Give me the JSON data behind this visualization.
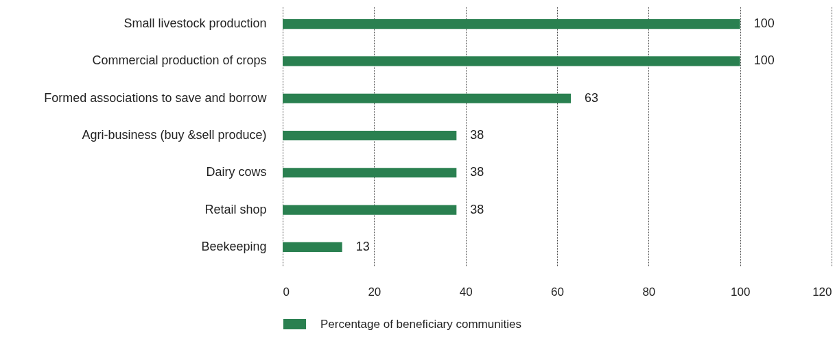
{
  "chart_data": {
    "type": "bar",
    "orientation": "horizontal",
    "categories": [
      "Small livestock production",
      "Commercial production of crops",
      "Formed associations to save and borrow",
      "Agri-business (buy &sell produce)",
      "Dairy cows",
      "Retail shop",
      "Beekeeping"
    ],
    "series": [
      {
        "name": "Percentage of beneficiary communities",
        "color": "#2a8050",
        "values": [
          100,
          100,
          63,
          38,
          38,
          38,
          13
        ]
      }
    ],
    "xlim": [
      0,
      120
    ],
    "xticks": [
      0,
      20,
      40,
      60,
      80,
      100,
      120
    ],
    "grid": "x",
    "data_labels": true,
    "legend": "bottom"
  }
}
